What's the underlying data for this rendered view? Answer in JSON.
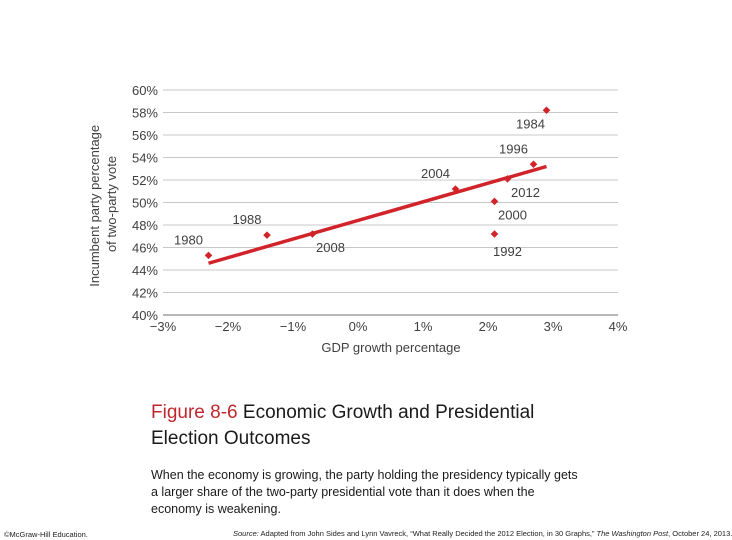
{
  "chart_data": {
    "type": "scatter",
    "xlabel": "GDP growth percentage",
    "ylabel_lines": [
      "Incumbent party percentage",
      "of two-party vote"
    ],
    "x_ticks": [
      -3,
      -2,
      -1,
      0,
      1,
      2,
      3,
      4
    ],
    "x_tick_labels": [
      "−3%",
      "−2%",
      "−1%",
      "0%",
      "1%",
      "2%",
      "3%",
      "4%"
    ],
    "y_ticks": [
      40,
      42,
      44,
      46,
      48,
      50,
      52,
      54,
      56,
      58,
      60
    ],
    "y_tick_labels": [
      "40%",
      "42%",
      "44%",
      "46%",
      "48%",
      "50%",
      "52%",
      "54%",
      "56%",
      "58%",
      "60%"
    ],
    "xlim": [
      -3,
      4
    ],
    "ylim": [
      40,
      60
    ],
    "grid": true,
    "marker_color": "#d1232a",
    "trend_color": "#d1232a",
    "points": [
      {
        "label": "1980",
        "x": -2.3,
        "y": 45.3,
        "label_pos": "above-left"
      },
      {
        "label": "1988",
        "x": -1.4,
        "y": 47.1,
        "label_pos": "above-left"
      },
      {
        "label": "2008",
        "x": -0.7,
        "y": 47.2,
        "label_pos": "below-right"
      },
      {
        "label": "2004",
        "x": 1.5,
        "y": 51.2,
        "label_pos": "above-left"
      },
      {
        "label": "1992",
        "x": 2.1,
        "y": 47.2,
        "label_pos": "below"
      },
      {
        "label": "2000",
        "x": 2.1,
        "y": 50.1,
        "label_pos": "below-right"
      },
      {
        "label": "2012",
        "x": 2.3,
        "y": 52.1,
        "label_pos": "below-right"
      },
      {
        "label": "1996",
        "x": 2.7,
        "y": 53.4,
        "label_pos": "above-left"
      },
      {
        "label": "1984",
        "x": 2.9,
        "y": 58.2,
        "label_pos": "below-left"
      }
    ],
    "trend_line": {
      "x": [
        -2.3,
        2.9
      ],
      "y": [
        44.6,
        53.2
      ]
    }
  },
  "caption": {
    "figure_number": "Figure 8-6",
    "title": "Economic Growth and Presidential Election Outcomes",
    "body": "When the economy is growing, the party holding the presidency typically gets a larger share of the two-party presidential vote than it does when the economy is weakening."
  },
  "footer": {
    "copyright": "©McGraw-Hill Education.",
    "source_prefix": "Source:",
    "source_text": " Adapted from John Sides and Lynn Vavreck, “What Really Decided the 2012 Election, in 30 Graphs,” ",
    "source_publication": "The Washington Post",
    "source_suffix": ", October 24, 2013."
  }
}
